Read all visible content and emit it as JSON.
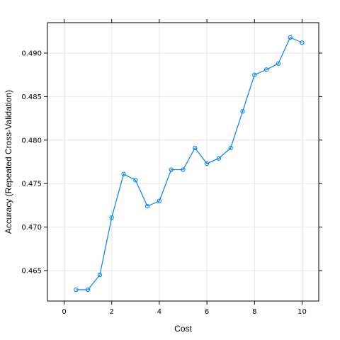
{
  "chart_data": {
    "type": "line",
    "xlabel": "Cost",
    "ylabel": "Accuracy (Repeated Cross-Validation)",
    "xlim": [
      -0.7,
      10.7
    ],
    "ylim": [
      0.4615,
      0.4935
    ],
    "grid": true,
    "x_ticks": [
      0,
      2,
      4,
      6,
      8,
      10
    ],
    "x_tick_labels": [
      "0",
      "2",
      "4",
      "6",
      "8",
      "10"
    ],
    "y_ticks": [
      0.465,
      0.47,
      0.475,
      0.48,
      0.485,
      0.49
    ],
    "y_tick_labels": [
      "0.465",
      "0.470",
      "0.475",
      "0.480",
      "0.485",
      "0.490"
    ],
    "series": [
      {
        "color": "#0080ff",
        "marker": "open-circle",
        "x": [
          0.5,
          1.0,
          1.5,
          2.0,
          2.5,
          3.0,
          3.5,
          4.0,
          4.5,
          5.0,
          5.5,
          6.0,
          6.5,
          7.0,
          7.5,
          8.0,
          8.5,
          9.0,
          9.5,
          10.0
        ],
        "y": [
          0.4628,
          0.4628,
          0.4645,
          0.4711,
          0.4761,
          0.4754,
          0.4724,
          0.473,
          0.4766,
          0.4766,
          0.4791,
          0.4773,
          0.4779,
          0.4791,
          0.4833,
          0.4875,
          0.4881,
          0.4888,
          0.4918,
          0.4912
        ]
      }
    ]
  }
}
